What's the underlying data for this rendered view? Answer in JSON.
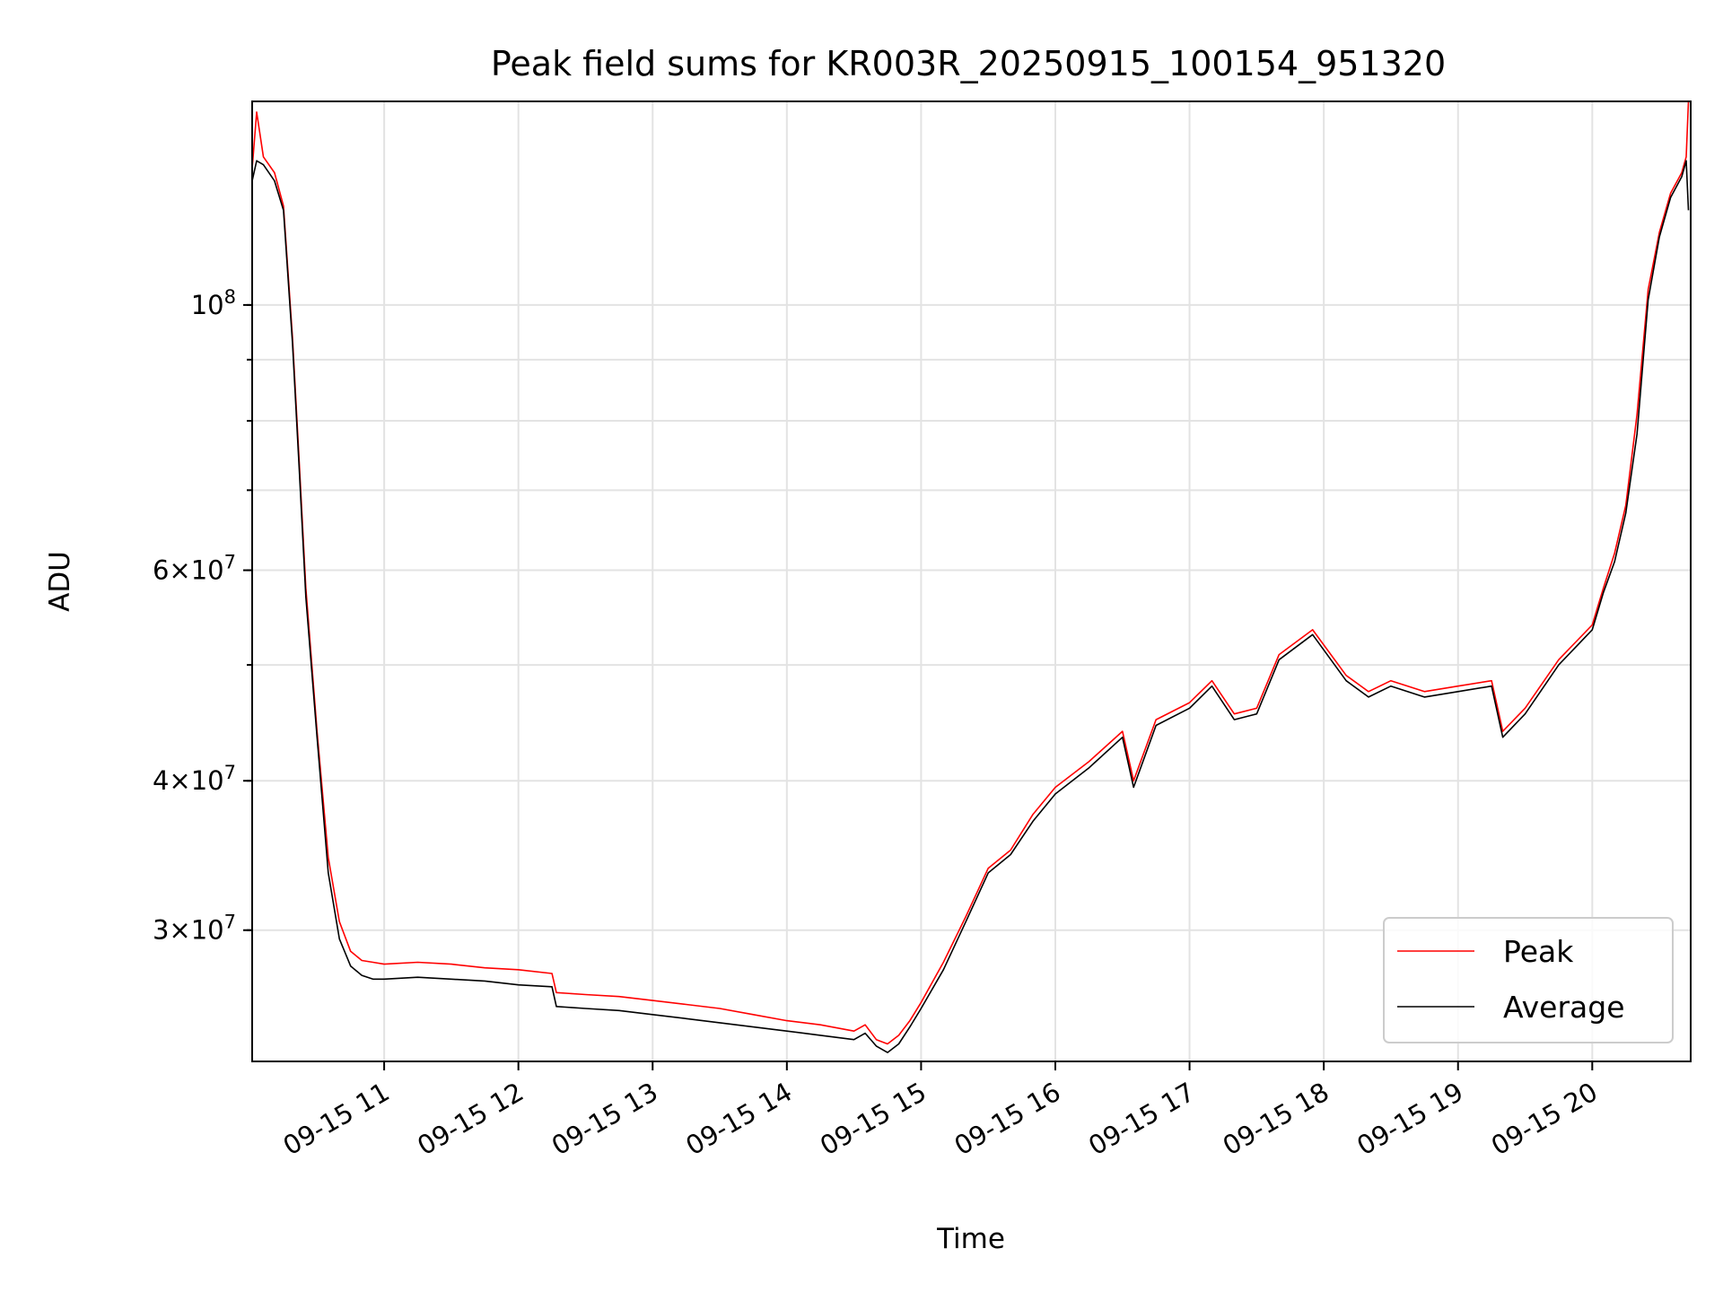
{
  "chart_data": {
    "type": "line",
    "title": "Peak field sums for KR003R_20250915_100154_951320",
    "xlabel": "Time",
    "ylabel": "ADU",
    "yscale": "log",
    "grid": true,
    "legend_placement": "lower-right",
    "xlim": [
      "2025-09-15 10:01",
      "2025-09-15 20:44"
    ],
    "ylim": [
      23300000,
      148000000
    ],
    "x_ticks": [
      {
        "t": "2025-09-15 11:00",
        "label": "09-15 11"
      },
      {
        "t": "2025-09-15 12:00",
        "label": "09-15 12"
      },
      {
        "t": "2025-09-15 13:00",
        "label": "09-15 13"
      },
      {
        "t": "2025-09-15 14:00",
        "label": "09-15 14"
      },
      {
        "t": "2025-09-15 15:00",
        "label": "09-15 15"
      },
      {
        "t": "2025-09-15 16:00",
        "label": "09-15 16"
      },
      {
        "t": "2025-09-15 17:00",
        "label": "09-15 17"
      },
      {
        "t": "2025-09-15 18:00",
        "label": "09-15 18"
      },
      {
        "t": "2025-09-15 19:00",
        "label": "09-15 19"
      },
      {
        "t": "2025-09-15 20:00",
        "label": "09-15 20"
      }
    ],
    "y_ticks_major": [
      {
        "value": 30000000,
        "base": "3",
        "times": "×",
        "exp_base": "10",
        "exp": "7"
      },
      {
        "value": 40000000,
        "base": "4",
        "times": "×",
        "exp_base": "10",
        "exp": "7"
      },
      {
        "value": 60000000,
        "base": "6",
        "times": "×",
        "exp_base": "10",
        "exp": "7"
      },
      {
        "value": 100000000,
        "base": "",
        "times": "",
        "exp_base": "10",
        "exp": "8"
      }
    ],
    "y_gridlines": [
      30000000,
      40000000,
      50000000,
      60000000,
      70000000,
      80000000,
      90000000,
      100000000
    ],
    "series": [
      {
        "name": "Peak",
        "color": "#ff0000",
        "x": [
          "2025-09-15 10:01",
          "2025-09-15 10:03",
          "2025-09-15 10:06",
          "2025-09-15 10:11",
          "2025-09-15 10:15",
          "2025-09-15 10:19",
          "2025-09-15 10:22",
          "2025-09-15 10:25",
          "2025-09-15 10:30",
          "2025-09-15 10:35",
          "2025-09-15 10:40",
          "2025-09-15 10:45",
          "2025-09-15 10:50",
          "2025-09-15 10:55",
          "2025-09-15 11:00",
          "2025-09-15 11:15",
          "2025-09-15 11:30",
          "2025-09-15 11:45",
          "2025-09-15 12:00",
          "2025-09-15 12:15",
          "2025-09-15 12:17",
          "2025-09-15 12:30",
          "2025-09-15 12:45",
          "2025-09-15 13:00",
          "2025-09-15 13:15",
          "2025-09-15 13:30",
          "2025-09-15 13:45",
          "2025-09-15 14:00",
          "2025-09-15 14:15",
          "2025-09-15 14:30",
          "2025-09-15 14:35",
          "2025-09-15 14:40",
          "2025-09-15 14:45",
          "2025-09-15 14:50",
          "2025-09-15 14:55",
          "2025-09-15 15:00",
          "2025-09-15 15:10",
          "2025-09-15 15:20",
          "2025-09-15 15:30",
          "2025-09-15 15:40",
          "2025-09-15 15:50",
          "2025-09-15 16:00",
          "2025-09-15 16:15",
          "2025-09-15 16:30",
          "2025-09-15 16:35",
          "2025-09-15 16:45",
          "2025-09-15 17:00",
          "2025-09-15 17:10",
          "2025-09-15 17:20",
          "2025-09-15 17:30",
          "2025-09-15 17:40",
          "2025-09-15 17:55",
          "2025-09-15 18:10",
          "2025-09-15 18:20",
          "2025-09-15 18:30",
          "2025-09-15 18:45",
          "2025-09-15 19:00",
          "2025-09-15 19:15",
          "2025-09-15 19:20",
          "2025-09-15 19:30",
          "2025-09-15 19:45",
          "2025-09-15 20:00",
          "2025-09-15 20:05",
          "2025-09-15 20:10",
          "2025-09-15 20:15",
          "2025-09-15 20:20",
          "2025-09-15 20:25",
          "2025-09-15 20:30",
          "2025-09-15 20:35",
          "2025-09-15 20:40",
          "2025-09-15 20:42",
          "2025-09-15 20:43"
        ],
        "y": [
          130000000,
          145000000,
          133000000,
          129000000,
          121000000,
          94000000,
          74000000,
          58000000,
          44000000,
          34500000,
          30500000,
          28800000,
          28300000,
          28200000,
          28100000,
          28200000,
          28100000,
          27900000,
          27800000,
          27600000,
          26600000,
          26500000,
          26400000,
          26200000,
          26000000,
          25800000,
          25500000,
          25200000,
          25000000,
          24700000,
          25000000,
          24300000,
          24100000,
          24500000,
          25200000,
          26100000,
          28200000,
          30800000,
          33800000,
          35000000,
          37500000,
          39500000,
          41500000,
          44000000,
          40000000,
          45000000,
          46500000,
          48500000,
          45500000,
          46000000,
          51000000,
          53500000,
          49000000,
          47500000,
          48500000,
          47500000,
          48000000,
          48500000,
          44000000,
          46000000,
          50500000,
          54000000,
          58000000,
          62000000,
          68000000,
          81000000,
          103000000,
          115000000,
          124000000,
          129000000,
          133000000,
          148000000
        ]
      },
      {
        "name": "Average",
        "color": "#000000",
        "x": [
          "2025-09-15 10:01",
          "2025-09-15 10:03",
          "2025-09-15 10:06",
          "2025-09-15 10:11",
          "2025-09-15 10:15",
          "2025-09-15 10:19",
          "2025-09-15 10:22",
          "2025-09-15 10:25",
          "2025-09-15 10:30",
          "2025-09-15 10:35",
          "2025-09-15 10:40",
          "2025-09-15 10:45",
          "2025-09-15 10:50",
          "2025-09-15 10:55",
          "2025-09-15 11:00",
          "2025-09-15 11:15",
          "2025-09-15 11:30",
          "2025-09-15 11:45",
          "2025-09-15 12:00",
          "2025-09-15 12:15",
          "2025-09-15 12:17",
          "2025-09-15 12:30",
          "2025-09-15 12:45",
          "2025-09-15 13:00",
          "2025-09-15 13:15",
          "2025-09-15 13:30",
          "2025-09-15 13:45",
          "2025-09-15 14:00",
          "2025-09-15 14:15",
          "2025-09-15 14:30",
          "2025-09-15 14:35",
          "2025-09-15 14:40",
          "2025-09-15 14:45",
          "2025-09-15 14:50",
          "2025-09-15 14:55",
          "2025-09-15 15:00",
          "2025-09-15 15:10",
          "2025-09-15 15:20",
          "2025-09-15 15:30",
          "2025-09-15 15:40",
          "2025-09-15 15:50",
          "2025-09-15 16:00",
          "2025-09-15 16:15",
          "2025-09-15 16:30",
          "2025-09-15 16:35",
          "2025-09-15 16:45",
          "2025-09-15 17:00",
          "2025-09-15 17:10",
          "2025-09-15 17:20",
          "2025-09-15 17:30",
          "2025-09-15 17:40",
          "2025-09-15 17:55",
          "2025-09-15 18:10",
          "2025-09-15 18:20",
          "2025-09-15 18:30",
          "2025-09-15 18:45",
          "2025-09-15 19:00",
          "2025-09-15 19:15",
          "2025-09-15 19:20",
          "2025-09-15 19:30",
          "2025-09-15 19:45",
          "2025-09-15 20:00",
          "2025-09-15 20:05",
          "2025-09-15 20:10",
          "2025-09-15 20:15",
          "2025-09-15 20:20",
          "2025-09-15 20:25",
          "2025-09-15 20:30",
          "2025-09-15 20:35",
          "2025-09-15 20:40",
          "2025-09-15 20:42",
          "2025-09-15 20:43"
        ],
        "y": [
          127000000,
          132000000,
          131000000,
          127000000,
          120000000,
          93000000,
          73000000,
          57000000,
          43500000,
          33500000,
          29500000,
          28000000,
          27500000,
          27300000,
          27300000,
          27400000,
          27300000,
          27200000,
          27000000,
          26900000,
          25900000,
          25800000,
          25700000,
          25500000,
          25300000,
          25100000,
          24900000,
          24700000,
          24500000,
          24300000,
          24600000,
          24000000,
          23700000,
          24100000,
          24900000,
          25800000,
          27800000,
          30500000,
          33500000,
          34700000,
          37000000,
          39000000,
          41000000,
          43500000,
          39500000,
          44500000,
          46000000,
          48000000,
          45000000,
          45500000,
          50500000,
          53000000,
          48500000,
          47000000,
          48000000,
          47000000,
          47500000,
          48000000,
          43500000,
          45500000,
          50000000,
          53500000,
          57500000,
          61000000,
          67000000,
          78000000,
          101000000,
          114000000,
          123000000,
          128000000,
          132000000,
          120000000
        ]
      }
    ]
  },
  "legend": {
    "items": [
      {
        "label": "Peak",
        "color": "#ff0000"
      },
      {
        "label": "Average",
        "color": "#000000"
      }
    ]
  }
}
